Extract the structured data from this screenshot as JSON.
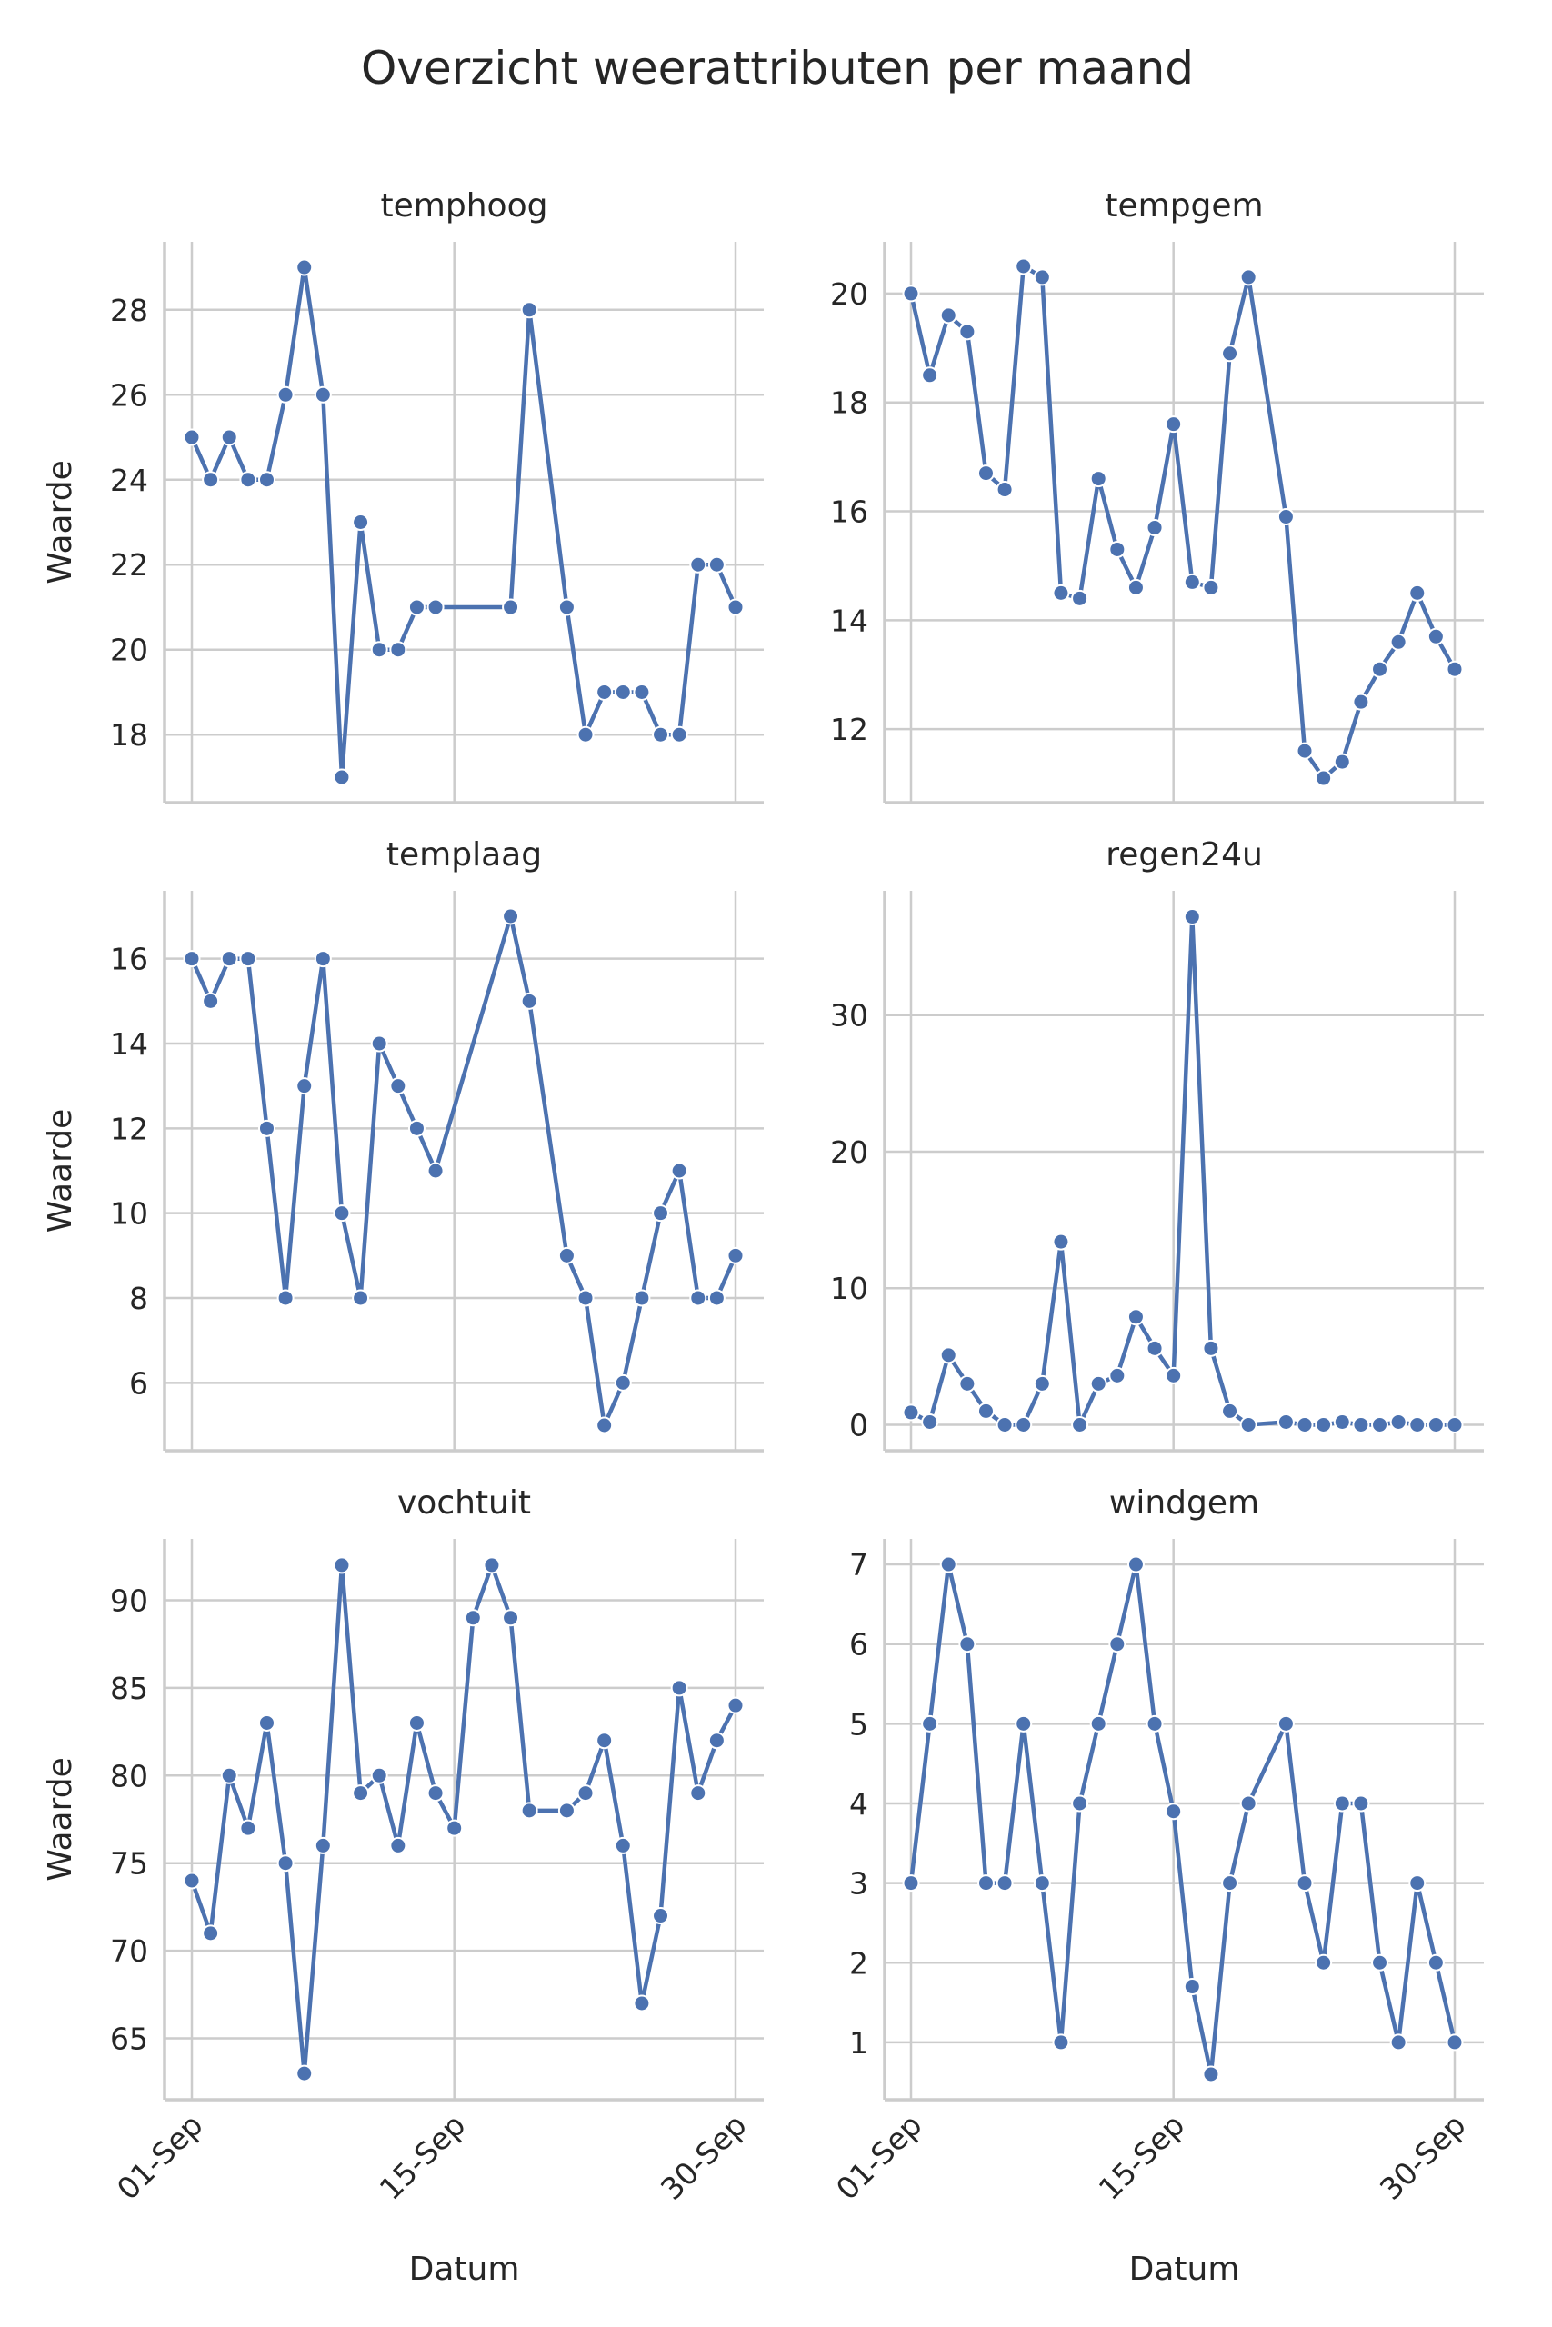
{
  "chart_data": {
    "type": "line",
    "title": "Overzicht weerattributen per maand",
    "xlabel": "Datum",
    "ylabel": "Waarde",
    "x_ticks": [
      {
        "day": 1,
        "label": "01-Sep"
      },
      {
        "day": 15,
        "label": "15-Sep"
      },
      {
        "day": 30,
        "label": "30-Sep"
      }
    ],
    "xlim": [
      1,
      30
    ],
    "grid": true,
    "color": "#4c72b0",
    "panels": [
      {
        "name": "temphoog",
        "ylim": [
          16.4,
          29.6
        ],
        "yticks": [
          18,
          20,
          22,
          24,
          26,
          28
        ],
        "days": [
          1,
          2,
          3,
          4,
          5,
          6,
          7,
          8,
          9,
          10,
          11,
          12,
          13,
          14,
          18,
          19,
          21,
          22,
          23,
          24,
          25,
          26,
          27,
          28,
          29,
          30
        ],
        "values": [
          25,
          24,
          25,
          24,
          24,
          26,
          29,
          26,
          17,
          23,
          20,
          20,
          21,
          21,
          21,
          28,
          21,
          18,
          19,
          19,
          19,
          18,
          18,
          22,
          22,
          21
        ]
      },
      {
        "name": "tempgem",
        "ylim": [
          10.65,
          20.95
        ],
        "yticks": [
          12,
          14,
          16,
          18,
          20
        ],
        "days": [
          1,
          2,
          3,
          4,
          5,
          6,
          7,
          8,
          9,
          10,
          11,
          12,
          13,
          14,
          15,
          16,
          17,
          18,
          19,
          21,
          22,
          23,
          24,
          25,
          26,
          27,
          28,
          29,
          30
        ],
        "values": [
          20.0,
          18.5,
          19.6,
          19.3,
          16.7,
          16.4,
          20.5,
          20.3,
          14.5,
          14.4,
          16.6,
          15.3,
          14.6,
          15.7,
          17.6,
          14.7,
          14.6,
          18.9,
          20.3,
          15.9,
          11.6,
          11.1,
          11.4,
          12.5,
          13.1,
          13.6,
          14.5,
          13.7,
          13.1
        ]
      },
      {
        "name": "templaag",
        "ylim": [
          4.4,
          17.6
        ],
        "yticks": [
          6,
          8,
          10,
          12,
          14,
          16
        ],
        "days": [
          1,
          2,
          3,
          4,
          5,
          6,
          7,
          8,
          9,
          10,
          11,
          12,
          13,
          14,
          18,
          19,
          21,
          22,
          23,
          24,
          25,
          26,
          27,
          28,
          29,
          30
        ],
        "values": [
          16,
          15,
          16,
          16,
          12,
          8,
          13,
          16,
          10,
          8,
          14,
          13,
          12,
          11,
          17,
          15,
          9,
          8,
          5,
          6,
          8,
          10,
          11,
          8,
          8,
          9
        ]
      },
      {
        "name": "regen24u",
        "ylim": [
          -1.9,
          39.1
        ],
        "yticks": [
          0,
          10,
          20,
          30
        ],
        "days": [
          1,
          2,
          3,
          4,
          5,
          6,
          7,
          8,
          9,
          10,
          11,
          12,
          13,
          14,
          15,
          16,
          17,
          18,
          19,
          21,
          22,
          23,
          24,
          25,
          26,
          27,
          28,
          29,
          30
        ],
        "values": [
          0.9,
          0.2,
          5.1,
          3.0,
          1.0,
          0.0,
          0.0,
          3.0,
          13.4,
          0.0,
          3.0,
          3.6,
          7.9,
          5.6,
          3.6,
          37.2,
          5.6,
          1.0,
          0.0,
          0.2,
          0.0,
          0.0,
          0.2,
          0.0,
          0.0,
          0.2,
          0.0,
          0.0,
          0.0
        ]
      },
      {
        "name": "vochtuit",
        "ylim": [
          61.5,
          93.5
        ],
        "yticks": [
          65,
          70,
          75,
          80,
          85,
          90
        ],
        "days": [
          1,
          2,
          3,
          4,
          5,
          6,
          7,
          8,
          9,
          10,
          11,
          12,
          13,
          14,
          15,
          16,
          17,
          18,
          19,
          21,
          22,
          23,
          24,
          25,
          26,
          27,
          28,
          29,
          30
        ],
        "values": [
          74,
          71,
          80,
          77,
          83,
          75,
          63,
          76,
          92,
          79,
          80,
          76,
          83,
          79,
          77,
          89,
          92,
          89,
          78,
          78,
          79,
          82,
          76,
          67,
          72,
          85,
          79,
          82,
          84
        ]
      },
      {
        "name": "windgem",
        "ylim": [
          0.28,
          7.32
        ],
        "yticks": [
          1,
          2,
          3,
          4,
          5,
          6,
          7
        ],
        "days": [
          1,
          2,
          3,
          4,
          5,
          6,
          7,
          8,
          9,
          10,
          11,
          12,
          13,
          14,
          15,
          16,
          17,
          18,
          19,
          21,
          22,
          23,
          24,
          25,
          26,
          27,
          28,
          29,
          30
        ],
        "values": [
          3,
          5,
          7,
          6,
          3,
          3,
          5,
          3,
          1,
          4,
          5,
          6,
          7,
          5,
          3.9,
          1.7,
          0.6,
          3,
          4,
          5,
          3,
          2,
          4,
          4,
          2,
          1,
          3,
          2,
          1
        ]
      }
    ]
  }
}
